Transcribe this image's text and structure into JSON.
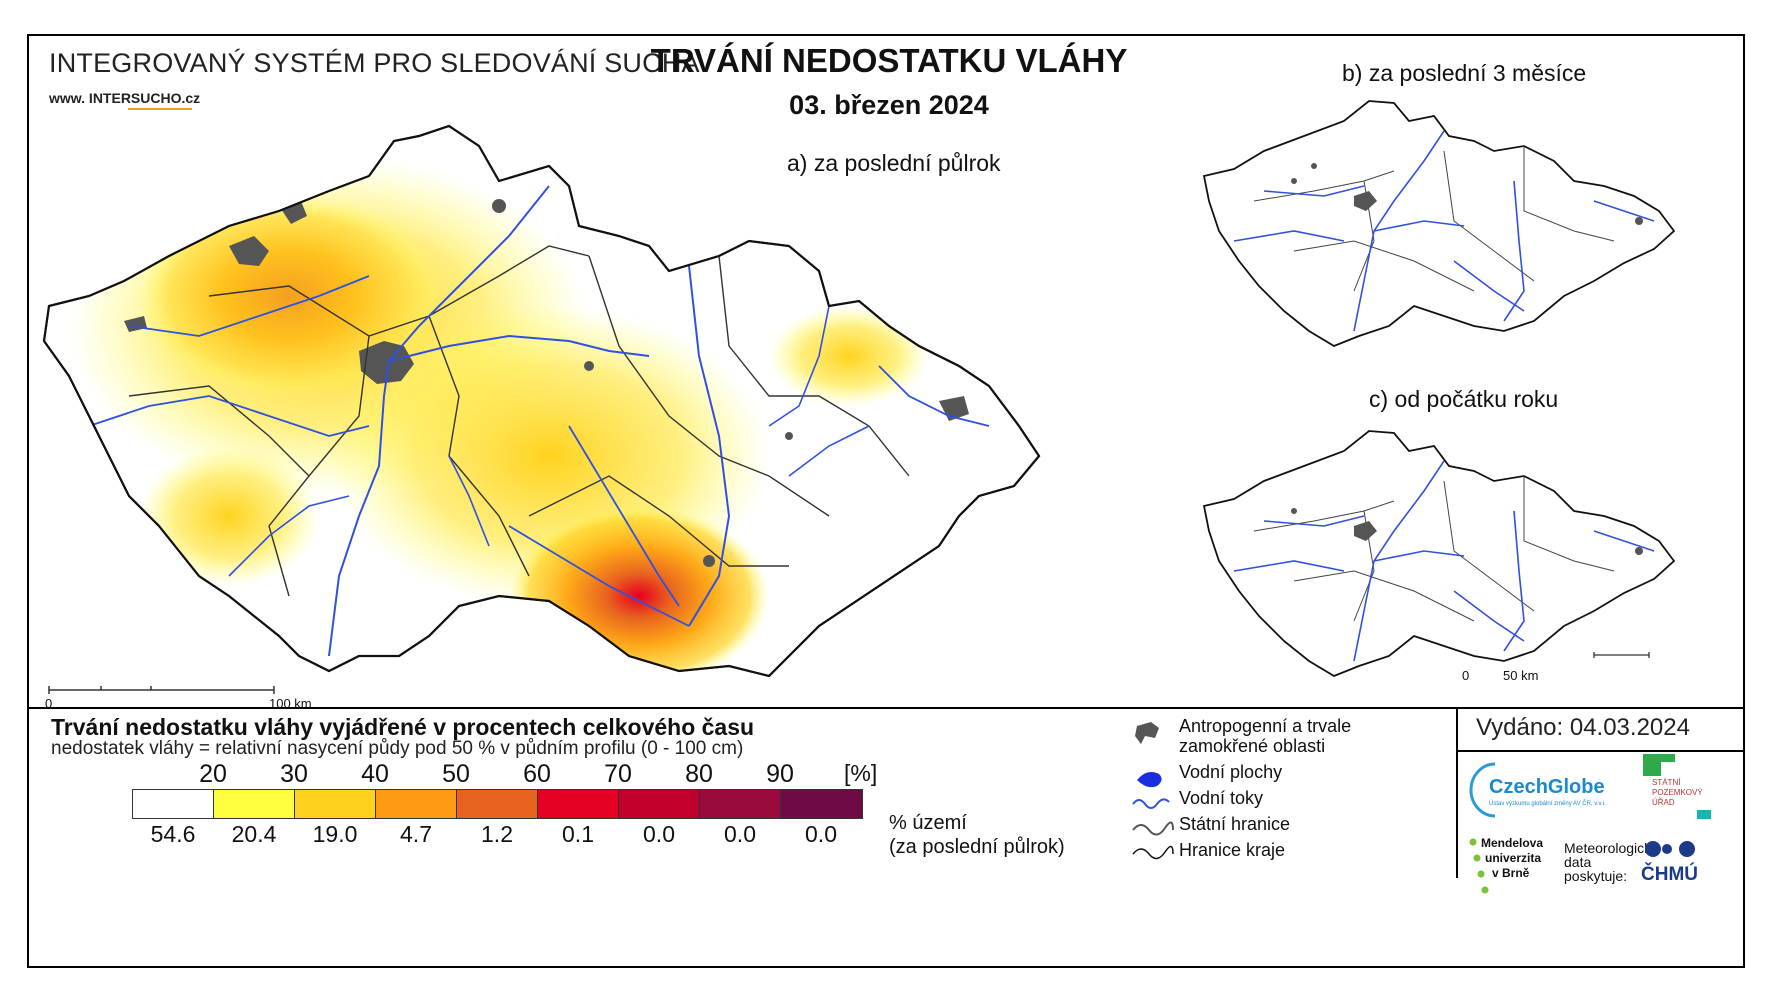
{
  "header": {
    "system_title": "INTEGROVANÝ SYSTÉM PRO SLEDOVÁNÍ SUCHA",
    "website": "www. INTERSUCHO.cz",
    "main_title": "TRVÁNÍ NEDOSTATKU VLÁHY",
    "date": "03. březen 2024"
  },
  "maps": {
    "a_label": "a) za poslední půlrok",
    "b_label": "b) za poslední 3 měsíce",
    "c_label": "c) od počátku roku",
    "scale_main_0": "0",
    "scale_main_end": "100 km",
    "scale_small_0": "0",
    "scale_small_end": "50 km"
  },
  "legend": {
    "title": "Trvání nedostatku vláhy vyjádřené v procentech celkového času",
    "subtitle": "nedostatek vláhy = relativní nasycení půdy pod 50 % v půdním profilu (0 - 100 cm)",
    "unit": "[%]",
    "thresholds": [
      "20",
      "30",
      "40",
      "50",
      "60",
      "70",
      "80",
      "90"
    ],
    "colors": [
      "#ffffff",
      "#ffff40",
      "#ffd21e",
      "#ff9a14",
      "#e8641e",
      "#e60023",
      "#c0002a",
      "#9a0a3c",
      "#6e0a46"
    ],
    "area_percent": [
      "54.6",
      "20.4",
      "19.0",
      "4.7",
      "1.2",
      "0.1",
      "0.0",
      "0.0",
      "0.0"
    ],
    "area_label_1": "% území",
    "area_label_2": "(za poslední půlrok)"
  },
  "symbols": {
    "anthropogenic_1": "Antropogenní a trvale",
    "anthropogenic_2": "zamokřené oblasti",
    "water_bodies": "Vodní plochy",
    "water_courses": "Vodní toky",
    "state_border": "Státní hranice",
    "region_border": "Hranice kraje"
  },
  "footer": {
    "issued": "Vydáno: 04.03.2024",
    "czechglobe": "CzechGlobe",
    "czechglobe_sub": "Ústav výzkumu globální změny AV ČR, v.v.i.",
    "spu_1": "STÁTNÍ",
    "spu_2": "POZEMKOVÝ",
    "spu_3": "ÚŘAD",
    "mendel_1": "Mendelova",
    "mendel_2": "univerzita",
    "mendel_3": "v Brně",
    "met_1": "Meteorologická",
    "met_2": "data",
    "met_3": "poskytuje:",
    "chmu": "ČHMÚ"
  }
}
